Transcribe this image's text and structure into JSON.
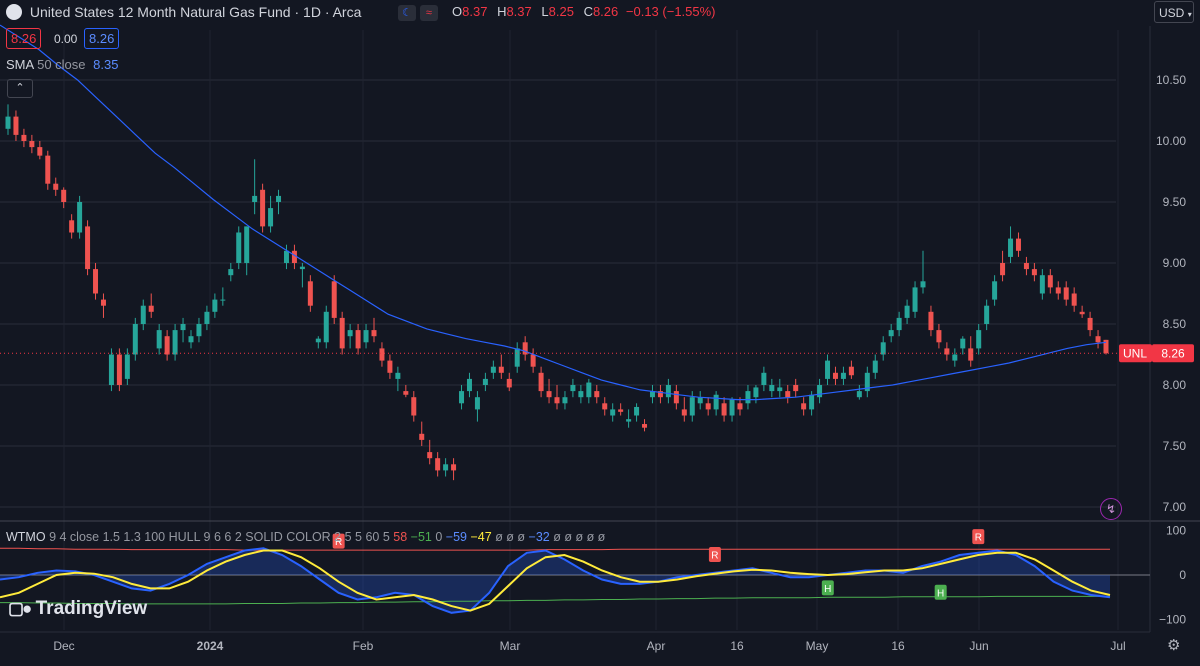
{
  "header": {
    "title": "United States 12 Month Natural Gas Fund · 1D · Arca",
    "open_label": "O",
    "open": "8.37",
    "high_label": "H",
    "high": "8.37",
    "low_label": "L",
    "low": "8.25",
    "close_label": "C",
    "close": "8.26",
    "change": "−0.13 (−1.55%)",
    "currency": "USD"
  },
  "quote": {
    "sell": "8.26",
    "spread": "0.00",
    "buy": "8.26"
  },
  "sma": {
    "name": "SMA",
    "params": "50 close",
    "value": "8.35"
  },
  "price_label": {
    "symbol": "UNL",
    "value": "8.26"
  },
  "indicator": {
    "name": "WTMO",
    "params": "9 4 close 1.5 1.3 100 HULL 9 6 6 2 SOLID COLOR 2 5 5 60 5",
    "v1": "58",
    "v2": "−51",
    "v3": "0",
    "v4": "−59",
    "v5": "−47",
    "nulls1": "ø ø ø",
    "v6": "−32",
    "nulls2": "ø ø ø ø ø"
  },
  "logo_text": "TradingView",
  "colors": {
    "background": "#131722",
    "up": "#26a69a",
    "down": "#ef5350",
    "sma": "#2962ff",
    "osc_fast": "#2962ff",
    "osc_slow": "#ffeb3b",
    "band_upper": "#ef5350",
    "band_lower": "#4caf50",
    "price_line": "#f23645"
  },
  "chart_data": {
    "type": "candlestick",
    "y_axis": {
      "ticks": [
        "10.50",
        "10.00",
        "9.50",
        "9.00",
        "8.50",
        "8.00",
        "7.50",
        "7.00"
      ]
    },
    "osc_axis": {
      "ticks": [
        "100",
        "0",
        "−100"
      ]
    },
    "x_axis": {
      "ticks": [
        "Dec",
        "2024",
        "Feb",
        "Mar",
        "Apr",
        "16",
        "May",
        "16",
        "Jun",
        "Jul"
      ]
    },
    "candles": [
      [
        10.1,
        10.3,
        10.05,
        10.2
      ],
      [
        10.2,
        10.25,
        10.0,
        10.05
      ],
      [
        10.05,
        10.1,
        9.95,
        10.0
      ],
      [
        10.0,
        10.05,
        9.9,
        9.95
      ],
      [
        9.95,
        10.0,
        9.85,
        9.88
      ],
      [
        9.88,
        9.92,
        9.6,
        9.65
      ],
      [
        9.65,
        9.7,
        9.55,
        9.6
      ],
      [
        9.6,
        9.62,
        9.45,
        9.5
      ],
      [
        9.35,
        9.4,
        9.2,
        9.25
      ],
      [
        9.25,
        9.55,
        9.2,
        9.5
      ],
      [
        9.3,
        9.35,
        8.9,
        8.95
      ],
      [
        8.95,
        9.0,
        8.7,
        8.75
      ],
      [
        8.7,
        8.75,
        8.55,
        8.65
      ],
      [
        8.0,
        8.3,
        7.95,
        8.25
      ],
      [
        8.25,
        8.3,
        7.95,
        8.0
      ],
      [
        8.05,
        8.3,
        8.0,
        8.25
      ],
      [
        8.25,
        8.55,
        8.2,
        8.5
      ],
      [
        8.5,
        8.7,
        8.45,
        8.65
      ],
      [
        8.65,
        8.75,
        8.55,
        8.6
      ],
      [
        8.3,
        8.5,
        8.25,
        8.45
      ],
      [
        8.4,
        8.45,
        8.2,
        8.25
      ],
      [
        8.25,
        8.5,
        8.2,
        8.45
      ],
      [
        8.45,
        8.55,
        8.35,
        8.5
      ],
      [
        8.35,
        8.45,
        8.3,
        8.4
      ],
      [
        8.4,
        8.55,
        8.35,
        8.5
      ],
      [
        8.5,
        8.65,
        8.45,
        8.6
      ],
      [
        8.6,
        8.75,
        8.55,
        8.7
      ],
      [
        8.7,
        8.8,
        8.65,
        8.7
      ],
      [
        8.9,
        9.0,
        8.85,
        8.95
      ],
      [
        9.0,
        9.3,
        8.95,
        9.25
      ],
      [
        9.0,
        9.3,
        8.9,
        9.3
      ],
      [
        9.5,
        9.85,
        9.4,
        9.55
      ],
      [
        9.6,
        9.65,
        9.25,
        9.3
      ],
      [
        9.3,
        9.55,
        9.25,
        9.45
      ],
      [
        9.5,
        9.6,
        9.4,
        9.55
      ],
      [
        9.0,
        9.15,
        8.95,
        9.1
      ],
      [
        9.1,
        9.15,
        8.95,
        9.0
      ],
      [
        8.95,
        9.0,
        8.8,
        8.97
      ],
      [
        8.85,
        8.9,
        8.6,
        8.65
      ],
      [
        8.35,
        8.4,
        8.3,
        8.38
      ],
      [
        8.35,
        8.65,
        8.3,
        8.6
      ],
      [
        8.85,
        8.9,
        8.5,
        8.55
      ],
      [
        8.55,
        8.6,
        8.25,
        8.3
      ],
      [
        8.4,
        8.5,
        8.3,
        8.45
      ],
      [
        8.45,
        8.5,
        8.25,
        8.3
      ],
      [
        8.35,
        8.5,
        8.3,
        8.45
      ],
      [
        8.45,
        8.55,
        8.35,
        8.4
      ],
      [
        8.3,
        8.35,
        8.15,
        8.2
      ],
      [
        8.2,
        8.25,
        8.05,
        8.1
      ],
      [
        8.05,
        8.15,
        7.95,
        8.1
      ],
      [
        7.95,
        8.0,
        7.9,
        7.92
      ],
      [
        7.9,
        7.95,
        7.7,
        7.75
      ],
      [
        7.6,
        7.7,
        7.5,
        7.55
      ],
      [
        7.45,
        7.55,
        7.35,
        7.4
      ],
      [
        7.4,
        7.45,
        7.25,
        7.3
      ],
      [
        7.3,
        7.4,
        7.25,
        7.35
      ],
      [
        7.35,
        7.4,
        7.22,
        7.3
      ],
      [
        7.85,
        8.0,
        7.8,
        7.95
      ],
      [
        7.95,
        8.1,
        7.9,
        8.05
      ],
      [
        7.8,
        7.95,
        7.7,
        7.9
      ],
      [
        8.0,
        8.1,
        7.95,
        8.05
      ],
      [
        8.1,
        8.2,
        8.05,
        8.15
      ],
      [
        8.15,
        8.25,
        8.05,
        8.1
      ],
      [
        8.05,
        8.1,
        7.95,
        7.98
      ],
      [
        8.15,
        8.35,
        8.1,
        8.3
      ],
      [
        8.35,
        8.4,
        8.2,
        8.25
      ],
      [
        8.25,
        8.3,
        8.1,
        8.15
      ],
      [
        8.1,
        8.15,
        7.9,
        7.95
      ],
      [
        7.95,
        8.05,
        7.85,
        7.9
      ],
      [
        7.9,
        8.0,
        7.8,
        7.85
      ],
      [
        7.85,
        7.95,
        7.8,
        7.9
      ],
      [
        7.95,
        8.05,
        7.9,
        8.0
      ],
      [
        7.9,
        8.0,
        7.85,
        7.95
      ],
      [
        7.9,
        8.05,
        7.85,
        8.02
      ],
      [
        7.95,
        8.0,
        7.85,
        7.9
      ],
      [
        7.85,
        7.9,
        7.75,
        7.8
      ],
      [
        7.75,
        7.85,
        7.7,
        7.8
      ],
      [
        7.8,
        7.85,
        7.75,
        7.78
      ],
      [
        7.7,
        7.8,
        7.65,
        7.72
      ],
      [
        7.75,
        7.85,
        7.7,
        7.82
      ],
      [
        7.68,
        7.72,
        7.62,
        7.65
      ],
      [
        7.9,
        8.0,
        7.85,
        7.95
      ],
      [
        7.95,
        8.0,
        7.85,
        7.9
      ],
      [
        7.9,
        8.05,
        7.85,
        8.0
      ],
      [
        7.95,
        8.0,
        7.8,
        7.85
      ],
      [
        7.8,
        7.9,
        7.7,
        7.75
      ],
      [
        7.75,
        7.95,
        7.7,
        7.9
      ],
      [
        7.85,
        7.95,
        7.8,
        7.9
      ],
      [
        7.85,
        7.9,
        7.75,
        7.8
      ],
      [
        7.8,
        7.95,
        7.75,
        7.92
      ],
      [
        7.85,
        7.9,
        7.7,
        7.75
      ],
      [
        7.75,
        7.9,
        7.7,
        7.88
      ],
      [
        7.85,
        7.9,
        7.75,
        7.8
      ],
      [
        7.85,
        8.0,
        7.8,
        7.95
      ],
      [
        7.9,
        8.0,
        7.85,
        7.98
      ],
      [
        8.0,
        8.15,
        7.95,
        8.1
      ],
      [
        7.95,
        8.05,
        7.9,
        8.0
      ],
      [
        7.95,
        8.05,
        7.9,
        7.98
      ],
      [
        7.95,
        8.0,
        7.85,
        7.9
      ],
      [
        8.0,
        8.05,
        7.9,
        7.95
      ],
      [
        7.85,
        7.9,
        7.75,
        7.8
      ],
      [
        7.8,
        7.95,
        7.75,
        7.92
      ],
      [
        7.9,
        8.05,
        7.85,
        8.0
      ],
      [
        8.05,
        8.25,
        8.0,
        8.2
      ],
      [
        8.1,
        8.15,
        8.0,
        8.05
      ],
      [
        8.05,
        8.15,
        8.0,
        8.1
      ],
      [
        8.15,
        8.2,
        8.05,
        8.08
      ],
      [
        7.9,
        8.0,
        7.88,
        7.95
      ],
      [
        7.95,
        8.15,
        7.9,
        8.1
      ],
      [
        8.1,
        8.25,
        8.05,
        8.2
      ],
      [
        8.25,
        8.4,
        8.2,
        8.35
      ],
      [
        8.4,
        8.5,
        8.35,
        8.45
      ],
      [
        8.45,
        8.6,
        8.4,
        8.55
      ],
      [
        8.55,
        8.7,
        8.5,
        8.65
      ],
      [
        8.6,
        8.85,
        8.55,
        8.8
      ],
      [
        8.8,
        9.1,
        8.75,
        8.85
      ],
      [
        8.6,
        8.65,
        8.4,
        8.45
      ],
      [
        8.45,
        8.5,
        8.3,
        8.35
      ],
      [
        8.3,
        8.35,
        8.2,
        8.25
      ],
      [
        8.2,
        8.3,
        8.15,
        8.25
      ],
      [
        8.3,
        8.4,
        8.25,
        8.38
      ],
      [
        8.3,
        8.4,
        8.15,
        8.2
      ],
      [
        8.3,
        8.5,
        8.25,
        8.45
      ],
      [
        8.5,
        8.7,
        8.45,
        8.65
      ],
      [
        8.7,
        8.9,
        8.65,
        8.85
      ],
      [
        9.0,
        9.1,
        8.85,
        8.9
      ],
      [
        9.05,
        9.3,
        9.0,
        9.2
      ],
      [
        9.2,
        9.25,
        9.05,
        9.1
      ],
      [
        9.0,
        9.05,
        8.9,
        8.95
      ],
      [
        8.95,
        9.0,
        8.85,
        8.9
      ],
      [
        8.75,
        8.95,
        8.7,
        8.9
      ],
      [
        8.9,
        8.95,
        8.75,
        8.8
      ],
      [
        8.8,
        8.85,
        8.7,
        8.75
      ],
      [
        8.8,
        8.85,
        8.65,
        8.7
      ],
      [
        8.75,
        8.8,
        8.6,
        8.65
      ],
      [
        8.6,
        8.65,
        8.55,
        8.58
      ],
      [
        8.55,
        8.6,
        8.4,
        8.45
      ],
      [
        8.4,
        8.45,
        8.3,
        8.35
      ],
      [
        8.37,
        8.37,
        8.25,
        8.26
      ]
    ],
    "sma50": [
      10.95,
      10.85,
      10.75,
      10.62,
      10.5,
      10.35,
      10.2,
      10.05,
      9.9,
      9.78,
      9.65,
      9.52,
      9.4,
      9.28,
      9.18,
      9.08,
      8.98,
      8.88,
      8.78,
      8.68,
      8.58,
      8.52,
      8.46,
      8.42,
      8.38,
      8.35,
      8.32,
      8.28,
      8.22,
      8.16,
      8.1,
      8.04,
      8.0,
      7.96,
      7.94,
      7.92,
      7.9,
      7.89,
      7.88,
      7.88,
      7.89,
      7.9,
      7.92,
      7.94,
      7.96,
      7.98,
      8.0,
      8.03,
      8.06,
      8.09,
      8.12,
      8.15,
      8.18,
      8.22,
      8.26,
      8.3,
      8.33,
      8.35
    ],
    "oscillator": {
      "fast": [
        -10,
        -5,
        5,
        10,
        8,
        0,
        -15,
        -30,
        -35,
        -20,
        0,
        25,
        40,
        55,
        60,
        45,
        20,
        -10,
        -40,
        -55,
        -50,
        -40,
        -45,
        -70,
        -85,
        -80,
        -40,
        20,
        50,
        55,
        35,
        10,
        -10,
        -20,
        -20,
        -15,
        -5,
        0,
        5,
        10,
        15,
        5,
        -5,
        -5,
        0,
        5,
        10,
        10,
        5,
        20,
        30,
        45,
        50,
        55,
        45,
        20,
        -15,
        -35,
        -45,
        -50
      ],
      "slow": [
        -50,
        -40,
        -20,
        0,
        5,
        3,
        -5,
        -20,
        -30,
        -30,
        -15,
        10,
        30,
        45,
        55,
        55,
        40,
        15,
        -15,
        -40,
        -55,
        -50,
        -45,
        -55,
        -70,
        -80,
        -65,
        -25,
        15,
        40,
        45,
        30,
        10,
        -5,
        -15,
        -15,
        -10,
        -3,
        3,
        8,
        12,
        10,
        5,
        2,
        0,
        2,
        6,
        10,
        10,
        15,
        25,
        35,
        45,
        50,
        50,
        35,
        10,
        -15,
        -35,
        -45
      ],
      "upper_band": [
        60,
        60,
        59,
        59,
        58,
        58,
        58,
        57,
        57,
        57,
        57,
        57,
        57,
        56,
        56,
        56,
        56,
        56,
        56,
        56,
        56,
        56,
        56,
        56,
        56,
        56,
        56,
        56,
        56,
        57,
        57,
        57,
        57,
        58,
        58,
        58,
        58,
        58,
        58,
        58,
        58,
        58,
        58,
        58,
        58,
        58,
        58,
        58,
        58,
        58,
        58,
        58,
        58,
        58,
        58,
        58,
        58,
        58,
        58,
        58
      ],
      "lower_band": [
        -62,
        -62,
        -63,
        -63,
        -64,
        -64,
        -64,
        -65,
        -65,
        -65,
        -65,
        -65,
        -65,
        -64,
        -64,
        -64,
        -63,
        -63,
        -62,
        -62,
        -61,
        -61,
        -60,
        -60,
        -59,
        -59,
        -58,
        -58,
        -57,
        -57,
        -56,
        -56,
        -55,
        -55,
        -54,
        -54,
        -53,
        -53,
        -52,
        -52,
        -51,
        -51,
        -51,
        -51,
        -50,
        -50,
        -50,
        -50,
        -49,
        -49,
        -49,
        -49,
        -49,
        -48,
        -48,
        -48,
        -48,
        -48,
        -48,
        -48
      ],
      "markers": [
        {
          "text": "R",
          "x_index": 18,
          "y": 75,
          "color": "#ef5350"
        },
        {
          "text": "R",
          "x_index": 38,
          "y": 45,
          "color": "#ef5350"
        },
        {
          "text": "H",
          "x_index": 44,
          "y": -30,
          "color": "#4caf50"
        },
        {
          "text": "H",
          "x_index": 50,
          "y": -40,
          "color": "#4caf50"
        },
        {
          "text": "R",
          "x_index": 52,
          "y": 85,
          "color": "#ef5350"
        }
      ]
    }
  }
}
